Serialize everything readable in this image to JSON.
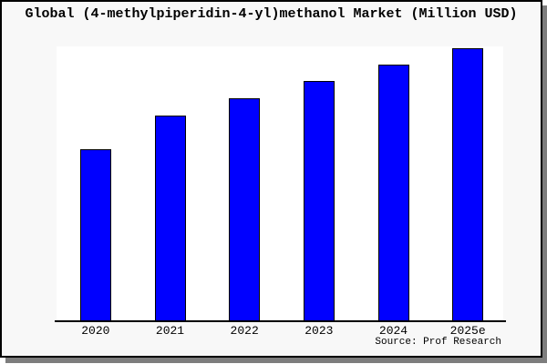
{
  "chart": {
    "title": "Global (4-methylpiperidin-4-yl)methanol Market (Million USD)",
    "source": "Source: Prof Research"
  },
  "chart_data": {
    "type": "bar",
    "title": "Global (4-methylpiperidin-4-yl)methanol Market (Million USD)",
    "categories": [
      "2020",
      "2021",
      "2022",
      "2023",
      "2024",
      "2025e"
    ],
    "values": [
      188,
      225,
      244,
      263,
      281,
      299
    ],
    "xlabel": "",
    "ylabel": "",
    "ylim": [
      0,
      301
    ],
    "grid": false,
    "legend": false,
    "bar_color": "#0000ff",
    "bar_border_color": "#000000",
    "source": "Source: Prof Research"
  }
}
